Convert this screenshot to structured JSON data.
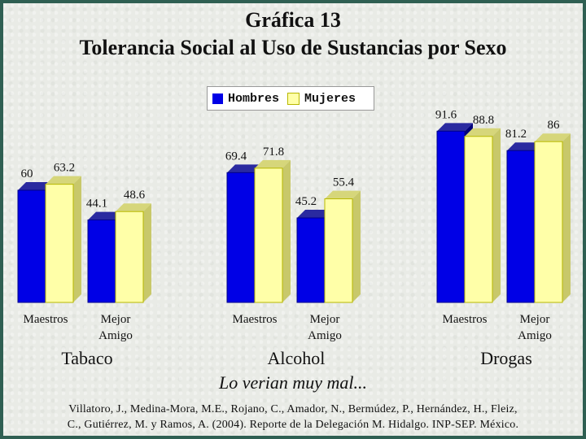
{
  "title": "Gráfica 13",
  "subtitle": "Tolerancia Social al Uso de Sustancias por Sexo",
  "caption": "Lo verian muy mal...",
  "source_line1": "Villatoro, J., Medina-Mora, M.E., Rojano, C., Amador, N., Bermúdez, P., Hernández, H., Fleiz,",
  "source_line2": "C., Gutiérrez, M. y Ramos, A. (2004). Reporte de la Delegación M. Hidalgo. INP-SEP. México.",
  "colors": {
    "hombres": "#0000e6",
    "mujeres": "#ffffa8",
    "edge": "#b8b800"
  },
  "chart_data": {
    "type": "bar",
    "legend_position": "top-center",
    "ylim": [
      0,
      100
    ],
    "series": [
      {
        "name": "Hombres",
        "color": "#0000e6"
      },
      {
        "name": "Mujeres",
        "color": "#ffffa8"
      }
    ],
    "groups": [
      {
        "name": "Tabaco",
        "categories": [
          {
            "label": [
              "Maestros"
            ],
            "values": [
              60,
              63.2
            ],
            "labels": [
              "60",
              "63.2"
            ]
          },
          {
            "label": [
              "Mejor",
              "Amigo"
            ],
            "values": [
              44.1,
              48.6
            ],
            "labels": [
              "44.1",
              "48.6"
            ]
          }
        ]
      },
      {
        "name": "Alcohol",
        "categories": [
          {
            "label": [
              "Maestros"
            ],
            "values": [
              69.4,
              71.8
            ],
            "labels": [
              "69.4",
              "71.8"
            ]
          },
          {
            "label": [
              "Mejor",
              "Amigo"
            ],
            "values": [
              45.2,
              55.4
            ],
            "labels": [
              "45.2",
              "55.4"
            ]
          }
        ]
      },
      {
        "name": "Drogas",
        "categories": [
          {
            "label": [
              "Maestros"
            ],
            "values": [
              91.6,
              88.8
            ],
            "labels": [
              "91.6",
              "88.8"
            ]
          },
          {
            "label": [
              "Mejor",
              "Amigo"
            ],
            "values": [
              81.2,
              86
            ],
            "labels": [
              "81.2",
              "86"
            ]
          }
        ]
      }
    ]
  }
}
